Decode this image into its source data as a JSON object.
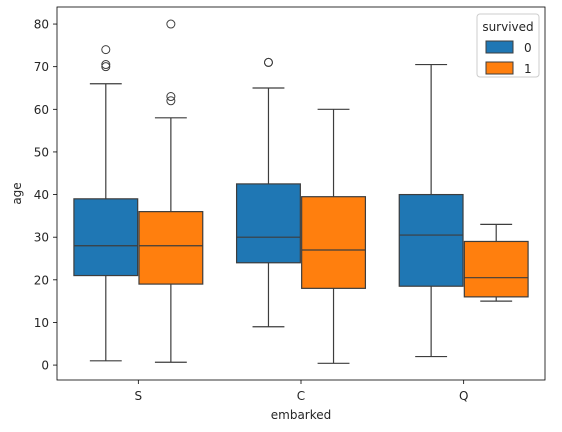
{
  "chart_data": {
    "type": "boxplot",
    "xlabel": "embarked",
    "ylabel": "age",
    "categories": [
      "S",
      "C",
      "Q"
    ],
    "ylim": [
      -3.5,
      84
    ],
    "yticks": [
      0,
      10,
      20,
      30,
      40,
      50,
      60,
      70,
      80
    ],
    "grid": false,
    "legend": {
      "title": "survived",
      "position": "top-right"
    },
    "series": [
      {
        "name": "0",
        "color": "#1f77b4",
        "boxes": [
          {
            "category": "S",
            "whisker_low": 1,
            "q1": 21,
            "median": 28,
            "q3": 39,
            "whisker_high": 66,
            "outliers": [
              70,
              70.5,
              74
            ]
          },
          {
            "category": "C",
            "whisker_low": 9,
            "q1": 24,
            "median": 30,
            "q3": 42.5,
            "whisker_high": 65,
            "outliers": [
              71,
              71
            ]
          },
          {
            "category": "Q",
            "whisker_low": 2,
            "q1": 18.5,
            "median": 30.5,
            "q3": 40,
            "whisker_high": 70.5,
            "outliers": []
          }
        ]
      },
      {
        "name": "1",
        "color": "#ff7f0e",
        "boxes": [
          {
            "category": "S",
            "whisker_low": 0.67,
            "q1": 19,
            "median": 28,
            "q3": 36,
            "whisker_high": 58,
            "outliers": [
              62,
              63,
              80
            ]
          },
          {
            "category": "C",
            "whisker_low": 0.42,
            "q1": 18,
            "median": 27,
            "q3": 39.5,
            "whisker_high": 60,
            "outliers": []
          },
          {
            "category": "Q",
            "whisker_low": 15,
            "q1": 16,
            "median": 20.5,
            "q3": 29,
            "whisker_high": 33,
            "outliers": []
          }
        ]
      }
    ]
  }
}
